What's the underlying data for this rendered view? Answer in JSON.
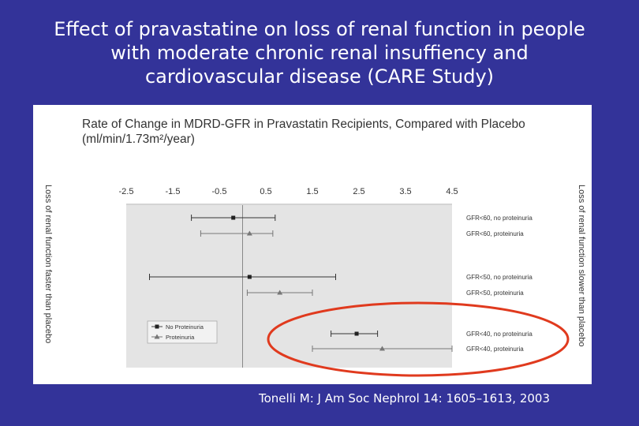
{
  "slide": {
    "title_lines": [
      "Effect of  pravastatine on loss of renal function in people",
      "with moderate chronic renal insuffiency and",
      "cardiovascular disease (CARE Study)"
    ],
    "citation": "Tonelli M: J Am Soc Nephrol 14: 1605–1613, 2003",
    "background_color": "#333399",
    "highlight_color": "#e03a1e"
  },
  "chart_data": {
    "type": "forest",
    "title_lines": [
      "Rate of Change in MDRD-GFR in Pravastatin Recipients, Compared with Placebo",
      "(ml/min/1.73m²/year)"
    ],
    "x_ticks": [
      "-2.5",
      "-1.5",
      "-0.5",
      "0.5",
      "1.5",
      "2.5",
      "3.5",
      "4.5"
    ],
    "xlim": [
      -2.5,
      4.5
    ],
    "reference_x": 0,
    "left_axis_label": "Loss of renal function faster than placebo",
    "right_axis_label": "Loss of renal function slower than placebo",
    "legend": [
      {
        "label": "No Proteinuria",
        "marker": "square"
      },
      {
        "label": "Proteinuria",
        "marker": "triangle"
      }
    ],
    "rows": [
      {
        "label": "GFR<60, no proteinuria",
        "estimate": -0.2,
        "lower": -1.1,
        "upper": 0.7,
        "marker": "square"
      },
      {
        "label": "GFR<60, proteinuria",
        "estimate": 0.15,
        "lower": -0.9,
        "upper": 0.65,
        "marker": "triangle"
      },
      {
        "label": "GFR<50, no proteinuria",
        "estimate": 0.15,
        "lower": -2.0,
        "upper": 2.0,
        "marker": "square"
      },
      {
        "label": "GFR<50, proteinuria",
        "estimate": 0.8,
        "lower": 0.1,
        "upper": 1.5,
        "marker": "triangle"
      },
      {
        "label": "GFR<40, no proteinuria",
        "estimate": 2.45,
        "lower": 1.9,
        "upper": 2.9,
        "marker": "square"
      },
      {
        "label": "GFR<40, proteinuria",
        "estimate": 3.0,
        "lower": 1.5,
        "upper": 4.5,
        "marker": "triangle"
      }
    ]
  }
}
